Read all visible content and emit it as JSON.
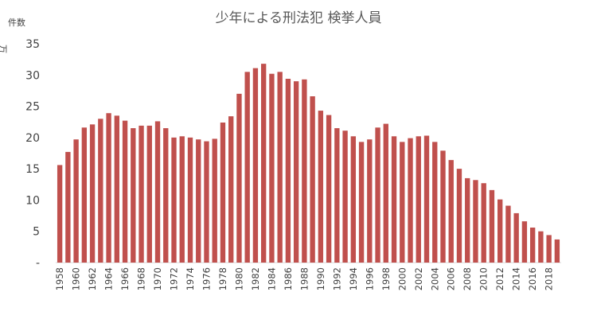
{
  "chart_data": {
    "type": "bar",
    "title": "少年による刑法犯 検挙人員",
    "ylabel_top": "件数",
    "ylabel_side": "万",
    "ylim": [
      0,
      35
    ],
    "yticks": [
      {
        "value": 0,
        "label": "-"
      },
      {
        "value": 5,
        "label": "5"
      },
      {
        "value": 10,
        "label": "10"
      },
      {
        "value": 15,
        "label": "15"
      },
      {
        "value": 20,
        "label": "20"
      },
      {
        "value": 25,
        "label": "25"
      },
      {
        "value": 30,
        "label": "30"
      },
      {
        "value": 35,
        "label": "35"
      }
    ],
    "bar_color": "#c0504d",
    "categories": [
      "1958",
      "1959",
      "1960",
      "1961",
      "1962",
      "1963",
      "1964",
      "1965",
      "1966",
      "1967",
      "1968",
      "1969",
      "1970",
      "1971",
      "1972",
      "1973",
      "1974",
      "1975",
      "1976",
      "1977",
      "1978",
      "1979",
      "1980",
      "1981",
      "1982",
      "1983",
      "1984",
      "1985",
      "1986",
      "1987",
      "1988",
      "1989",
      "1990",
      "1991",
      "1992",
      "1993",
      "1994",
      "1995",
      "1996",
      "1997",
      "1998",
      "1999",
      "2000",
      "2001",
      "2002",
      "2003",
      "2004",
      "2005",
      "2006",
      "2007",
      "2008",
      "2009",
      "2010",
      "2011",
      "2012",
      "2013",
      "2014",
      "2015",
      "2016",
      "2017",
      "2018",
      "2019"
    ],
    "xtick_labels": [
      "1958",
      "",
      "1960",
      "",
      "1962",
      "",
      "1964",
      "",
      "1966",
      "",
      "1968",
      "",
      "1970",
      "",
      "1972",
      "",
      "1974",
      "",
      "1976",
      "",
      "1978",
      "",
      "1980",
      "",
      "1982",
      "",
      "1984",
      "",
      "1986",
      "",
      "1988",
      "",
      "1990",
      "",
      "1992",
      "",
      "1994",
      "",
      "1996",
      "",
      "1998",
      "",
      "2000",
      "",
      "2002",
      "",
      "2004",
      "",
      "2006",
      "",
      "2008",
      "",
      "2010",
      "",
      "2012",
      "",
      "2014",
      "",
      "2016",
      "",
      "2018",
      ""
    ],
    "values": [
      15.6,
      17.7,
      19.7,
      21.6,
      22.1,
      23.0,
      23.9,
      23.5,
      22.7,
      21.5,
      21.9,
      21.9,
      22.6,
      21.5,
      20.0,
      20.2,
      20.0,
      19.7,
      19.4,
      19.8,
      22.4,
      23.4,
      27.0,
      30.5,
      31.1,
      31.8,
      30.2,
      30.5,
      29.4,
      29.0,
      29.3,
      26.6,
      24.3,
      23.6,
      21.5,
      21.1,
      20.2,
      19.3,
      19.7,
      21.6,
      22.2,
      20.2,
      19.3,
      19.9,
      20.2,
      20.3,
      19.3,
      17.9,
      16.4,
      15.0,
      13.5,
      13.2,
      12.7,
      11.6,
      10.1,
      9.1,
      7.9,
      6.6,
      5.6,
      5.0,
      4.4,
      3.7
    ]
  }
}
